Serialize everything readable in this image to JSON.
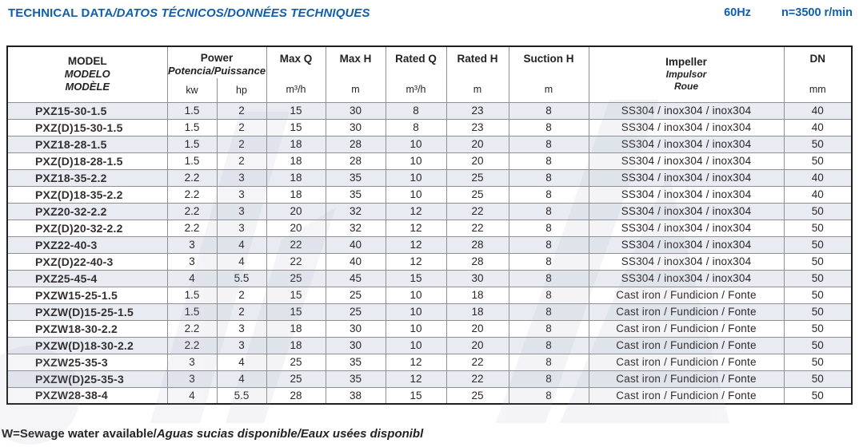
{
  "header": {
    "title_main": "TECHNICAL DATA",
    "title_tail": "/DATOS TÉCNICOS/DONNÉES TECHNIQUES",
    "frequency": "60Hz",
    "speed": "n=3500 r/min"
  },
  "table": {
    "columns": {
      "model": {
        "line1": "MODEL",
        "line2": "MODELO",
        "line3": "MODÈLE"
      },
      "power": {
        "title": "Power",
        "subtitle": "Potencia/Puissance",
        "unit_kw": "kw",
        "unit_hp": "hp"
      },
      "max_q": {
        "title": "Max Q",
        "unit": "m³/h"
      },
      "max_h": {
        "title": "Max H",
        "unit": "m"
      },
      "rated_q": {
        "title": "Rated Q",
        "unit": "m³/h"
      },
      "rated_h": {
        "title": "Rated H",
        "unit": "m"
      },
      "suction_h": {
        "title": "Suction H",
        "unit": "m"
      },
      "impeller": {
        "line1": "Impeller",
        "line2": "Impulsor",
        "line3": "Roue"
      },
      "dn": {
        "title": "DN",
        "unit": "mm"
      }
    },
    "rows": [
      [
        "PXZ15-30-1.5",
        "1.5",
        "2",
        "15",
        "30",
        "8",
        "23",
        "8",
        "SS304 / inox304 / inox304",
        "40"
      ],
      [
        "PXZ(D)15-30-1.5",
        "1.5",
        "2",
        "15",
        "30",
        "8",
        "23",
        "8",
        "SS304 / inox304 / inox304",
        "40"
      ],
      [
        "PXZ18-28-1.5",
        "1.5",
        "2",
        "18",
        "28",
        "10",
        "20",
        "8",
        "SS304 / inox304 / inox304",
        "50"
      ],
      [
        "PXZ(D)18-28-1.5",
        "1.5",
        "2",
        "18",
        "28",
        "10",
        "20",
        "8",
        "SS304 / inox304 / inox304",
        "50"
      ],
      [
        "PXZ18-35-2.2",
        "2.2",
        "3",
        "18",
        "35",
        "10",
        "25",
        "8",
        "SS304 / inox304 / inox304",
        "40"
      ],
      [
        "PXZ(D)18-35-2.2",
        "2.2",
        "3",
        "18",
        "35",
        "10",
        "25",
        "8",
        "SS304 / inox304 / inox304",
        "40"
      ],
      [
        "PXZ20-32-2.2",
        "2.2",
        "3",
        "20",
        "32",
        "12",
        "22",
        "8",
        "SS304 / inox304 / inox304",
        "50"
      ],
      [
        "PXZ(D)20-32-2.2",
        "2.2",
        "3",
        "20",
        "32",
        "12",
        "22",
        "8",
        "SS304 / inox304 / inox304",
        "50"
      ],
      [
        "PXZ22-40-3",
        "3",
        "4",
        "22",
        "40",
        "12",
        "28",
        "8",
        "SS304 / inox304 / inox304",
        "50"
      ],
      [
        "PXZ(D)22-40-3",
        "3",
        "4",
        "22",
        "40",
        "12",
        "28",
        "8",
        "SS304 / inox304 / inox304",
        "50"
      ],
      [
        "PXZ25-45-4",
        "4",
        "5.5",
        "25",
        "45",
        "15",
        "30",
        "8",
        "SS304 / inox304 / inox304",
        "50"
      ],
      [
        "PXZW15-25-1.5",
        "1.5",
        "2",
        "15",
        "25",
        "10",
        "18",
        "8",
        "Cast iron / Fundicion / Fonte",
        "50"
      ],
      [
        "PXZW(D)15-25-1.5",
        "1.5",
        "2",
        "15",
        "25",
        "10",
        "18",
        "8",
        "Cast iron / Fundicion / Fonte",
        "50"
      ],
      [
        "PXZW18-30-2.2",
        "2.2",
        "3",
        "18",
        "30",
        "10",
        "20",
        "8",
        "Cast iron / Fundicion / Fonte",
        "50"
      ],
      [
        "PXZW(D)18-30-2.2",
        "2.2",
        "3",
        "18",
        "30",
        "10",
        "20",
        "8",
        "Cast iron / Fundicion / Fonte",
        "50"
      ],
      [
        "PXZW25-35-3",
        "3",
        "4",
        "25",
        "35",
        "12",
        "22",
        "8",
        "Cast iron / Fundicion / Fonte",
        "50"
      ],
      [
        "PXZW(D)25-35-3",
        "3",
        "4",
        "25",
        "35",
        "12",
        "22",
        "8",
        "Cast iron / Fundicion / Fonte",
        "50"
      ],
      [
        "PXZW28-38-4",
        "4",
        "5.5",
        "28",
        "38",
        "15",
        "25",
        "8",
        "Cast iron / Fundicion / Fonte",
        "50"
      ]
    ]
  },
  "footnote": {
    "main": "W=Sewage water available/",
    "italic": "Aguas sucias disponible/Eaux usées disponibl"
  },
  "colors": {
    "accent": "#0f5fae",
    "row_stripe": "#e8ebf2",
    "grid_line": "#909090",
    "outer_border": "#1f1f1f"
  }
}
